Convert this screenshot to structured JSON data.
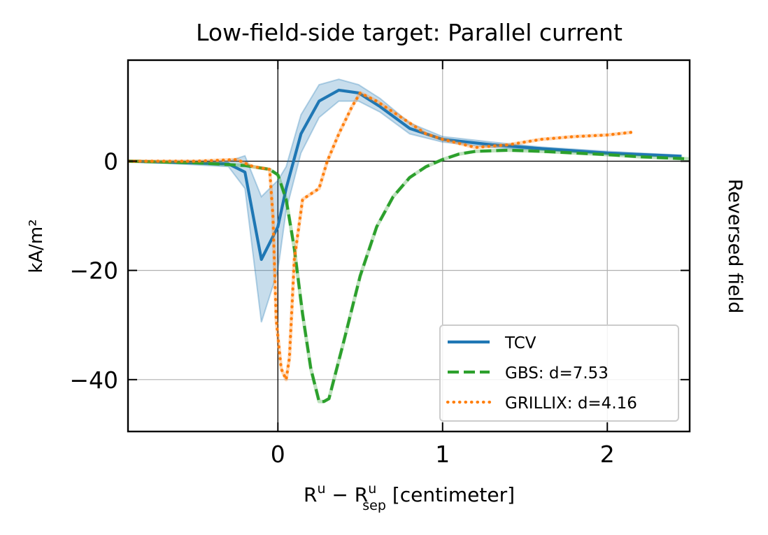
{
  "chart_data": {
    "type": "line",
    "title": "Low-field-side target: Parallel current",
    "xlabel_main": "R",
    "xlabel_sup1": "u",
    "xlabel_minus": " − R",
    "xlabel_sup2": "u",
    "xlabel_sub2": "sep",
    "xlabel_unit": " [centimeter]",
    "ylabel": "kA/m²",
    "right_label": "Reversed field",
    "xlim": [
      -0.91,
      2.5
    ],
    "ylim": [
      -49.5,
      18.5
    ],
    "xticks": [
      0,
      1,
      2
    ],
    "yticks": [
      0,
      -20,
      -40
    ],
    "xtick_labels": [
      "0",
      "1",
      "2"
    ],
    "ytick_labels": [
      "0",
      "−20",
      "−40"
    ],
    "grid": true,
    "legend_position": "lower-right",
    "series": [
      {
        "name": "TCV",
        "color": "#1f77b4",
        "style": "solid",
        "x": [
          -0.91,
          -0.3,
          -0.2,
          -0.1,
          0.0,
          0.05,
          0.14,
          0.25,
          0.37,
          0.49,
          0.62,
          0.8,
          1.0,
          1.3,
          1.6,
          2.0,
          2.45
        ],
        "y": [
          0.0,
          -0.5,
          -2.0,
          -18.0,
          -12.0,
          -5.0,
          5.0,
          11.0,
          13.0,
          12.5,
          10.0,
          6.0,
          4.0,
          3.0,
          2.3,
          1.5,
          0.9
        ],
        "lower": [
          0.0,
          -1.0,
          -5.0,
          -29.5,
          -20.0,
          -9.0,
          1.5,
          8.0,
          11.0,
          11.0,
          9.0,
          5.0,
          3.5,
          2.5,
          2.0,
          1.2,
          0.7
        ],
        "upper": [
          0.0,
          0.0,
          1.0,
          -6.5,
          -3.5,
          -1.0,
          8.5,
          14.0,
          15.0,
          14.0,
          11.5,
          7.0,
          4.5,
          3.5,
          2.6,
          1.8,
          1.1
        ]
      },
      {
        "name": "GBS: d=7.53",
        "color": "#2ca02c",
        "style": "dashed",
        "x": [
          -0.91,
          -0.5,
          -0.2,
          -0.05,
          0.0,
          0.05,
          0.1,
          0.15,
          0.2,
          0.25,
          0.28,
          0.31,
          0.4,
          0.5,
          0.6,
          0.7,
          0.8,
          0.9,
          1.0,
          1.1,
          1.2,
          1.4,
          1.6,
          1.8,
          2.0,
          2.2,
          2.5
        ],
        "y": [
          0.0,
          -0.3,
          -0.8,
          -1.5,
          -2.5,
          -7.0,
          -16.0,
          -28.0,
          -38.0,
          -44.0,
          -44.0,
          -43.5,
          -33.0,
          -21.0,
          -12.0,
          -6.5,
          -3.0,
          -1.0,
          0.3,
          1.3,
          1.8,
          2.0,
          1.8,
          1.5,
          1.2,
          0.8,
          0.4
        ]
      },
      {
        "name": "GRILLIX: d=4.16",
        "color": "#ff7f0e",
        "style": "dotted",
        "x": [
          -0.91,
          -0.5,
          -0.25,
          -0.15,
          -0.05,
          -0.03,
          -0.01,
          0.02,
          0.05,
          0.07,
          0.1,
          0.15,
          0.2,
          0.25,
          0.3,
          0.37,
          0.45,
          0.5,
          0.6,
          0.7,
          0.8,
          0.9,
          1.0,
          1.2,
          1.4,
          1.6,
          1.8,
          2.0,
          2.15
        ],
        "y": [
          0.0,
          0.0,
          0.3,
          -1.0,
          -1.5,
          -10.0,
          -29.0,
          -38.0,
          -40.0,
          -36.0,
          -18.0,
          -7.0,
          -6.0,
          -5.0,
          0.0,
          5.0,
          10.0,
          12.5,
          11.0,
          9.0,
          7.0,
          5.0,
          4.0,
          2.5,
          3.0,
          4.0,
          4.5,
          4.8,
          5.3
        ]
      }
    ]
  }
}
